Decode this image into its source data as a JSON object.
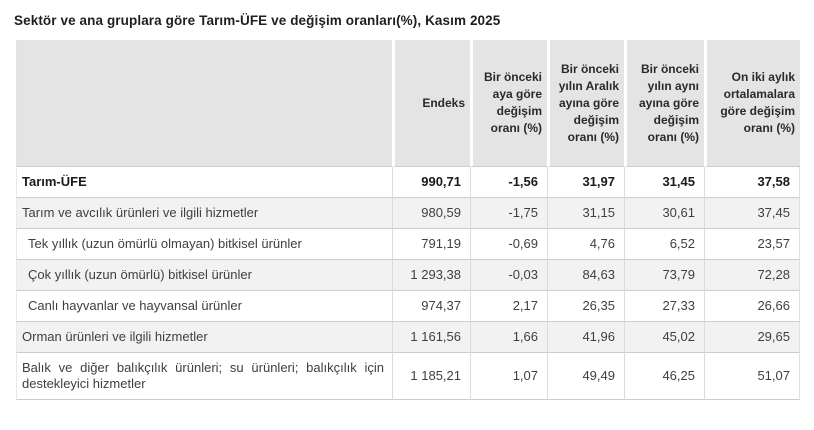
{
  "title_bar": {
    "title": "Sektör ve ana gruplara göre Tarım-ÜFE ve değişim oranları(%), Kasım 2025"
  },
  "chart_data": {
    "type": "table",
    "title": "Sektör ve ana gruplara göre Tarım-ÜFE ve değişim oranları(%), Kasım 2025",
    "columns": [
      "",
      "Endeks",
      "Bir önceki aya göre değişim oranı (%)",
      "Bir önceki yılın Aralık ayına göre değişim oranı (%)",
      "Bir önceki yılın aynı ayına göre değişim oranı (%)",
      "On iki aylık ortalamalara göre değişim oranı (%)"
    ],
    "rows": [
      {
        "label": "Tarım-ÜFE",
        "bold": true,
        "indent": false,
        "values": [
          "990,71",
          "-1,56",
          "31,97",
          "31,45",
          "37,58"
        ]
      },
      {
        "label": "Tarım ve avcılık ürünleri ve ilgili hizmetler",
        "bold": false,
        "indent": false,
        "values": [
          "980,59",
          "-1,75",
          "31,15",
          "30,61",
          "37,45"
        ]
      },
      {
        "label": "Tek yıllık (uzun ömürlü olmayan) bitkisel ürünler",
        "bold": false,
        "indent": true,
        "values": [
          "791,19",
          "-0,69",
          "4,76",
          "6,52",
          "23,57"
        ]
      },
      {
        "label": "Çok yıllık (uzun ömürlü) bitkisel ürünler",
        "bold": false,
        "indent": true,
        "values": [
          "1 293,38",
          "-0,03",
          "84,63",
          "73,79",
          "72,28"
        ]
      },
      {
        "label": "Canlı hayvanlar ve hayvansal ürünler",
        "bold": false,
        "indent": true,
        "values": [
          "974,37",
          "2,17",
          "26,35",
          "27,33",
          "26,66"
        ]
      },
      {
        "label": "Orman ürünleri ve ilgili hizmetler",
        "bold": false,
        "indent": false,
        "values": [
          "1 161,56",
          "1,66",
          "41,96",
          "45,02",
          "29,65"
        ]
      },
      {
        "label": "Balık ve diğer balıkçılık ürünleri; su ürünleri; balıkçılık için destekleyici hizmetler",
        "bold": false,
        "indent": false,
        "values": [
          "1 185,21",
          "1,07",
          "49,49",
          "46,25",
          "51,07"
        ]
      }
    ]
  },
  "colors": {
    "header_bg": "#e4e4e4",
    "row_alt_bg": "#f2f2f2",
    "row_bg": "#ffffff",
    "border_horizontal": "#cccccc",
    "border_vertical": "#dcdcdc",
    "text": "#3f3f3f",
    "title_text": "#1f1f1f"
  }
}
